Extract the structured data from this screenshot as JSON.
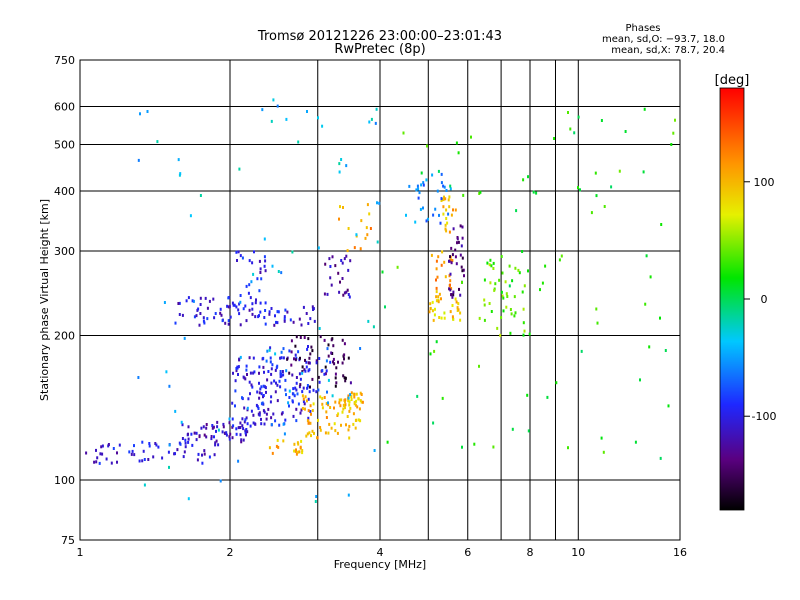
{
  "chart_data": {
    "type": "scatter",
    "title": "Tromsø 20121226 23:00:00–23:01:43",
    "subtitle": "RwPretec (8p)",
    "xlabel": "Frequency [MHz]",
    "ylabel": "Stationary phase Virtual Height [km]",
    "x_scale": "log",
    "y_scale": "log",
    "xlim": [
      1,
      16
    ],
    "ylim": [
      75,
      750
    ],
    "x_ticks": [
      1,
      2,
      4,
      6,
      8,
      10,
      16
    ],
    "x_tick_labels": [
      "1",
      "2",
      "4",
      "6",
      "8",
      "10",
      "16"
    ],
    "x_minor_gridlines": [
      3,
      5,
      7,
      9
    ],
    "y_ticks": [
      75,
      100,
      200,
      300,
      400,
      500,
      600,
      750
    ],
    "y_tick_labels": [
      "75",
      "100",
      "200",
      "300",
      "400",
      "500",
      "600",
      "750"
    ],
    "grid": true,
    "phases_box": {
      "title": "Phases",
      "line1": "mean, sd,O: −93.7, 18.0",
      "line2": "mean, sd,X:  78.7, 20.4"
    },
    "colorbar": {
      "label": "[deg]",
      "range": [
        -180,
        180
      ],
      "ticks": [
        100,
        0,
        -100
      ],
      "tick_labels": [
        "100",
        "0",
        "-100"
      ]
    },
    "clusters": [
      {
        "fmin": 1.0,
        "fmax": 1.9,
        "hmin": 108,
        "hmax": 120,
        "phase": -105,
        "count": 60
      },
      {
        "fmin": 1.6,
        "fmax": 2.2,
        "hmin": 120,
        "hmax": 132,
        "phase": -110,
        "count": 60
      },
      {
        "fmin": 2.0,
        "fmax": 2.9,
        "hmin": 130,
        "hmax": 180,
        "phase": -100,
        "count": 150
      },
      {
        "fmin": 2.4,
        "fmax": 2.8,
        "hmin": 113,
        "hmax": 123,
        "phase": 100,
        "count": 20
      },
      {
        "fmin": 2.8,
        "fmax": 3.7,
        "hmin": 122,
        "hmax": 150,
        "phase": 100,
        "count": 70
      },
      {
        "fmin": 3.3,
        "fmax": 3.7,
        "hmin": 140,
        "hmax": 152,
        "phase": 95,
        "count": 30
      },
      {
        "fmin": 2.6,
        "fmax": 3.5,
        "hmin": 155,
        "hmax": 200,
        "phase": -150,
        "count": 60
      },
      {
        "fmin": 2.3,
        "fmax": 3.2,
        "hmin": 150,
        "hmax": 190,
        "phase": -80,
        "count": 40
      },
      {
        "fmin": 1.55,
        "fmax": 2.4,
        "hmin": 210,
        "hmax": 240,
        "phase": -105,
        "count": 60
      },
      {
        "fmin": 2.05,
        "fmax": 2.4,
        "hmin": 220,
        "hmax": 300,
        "phase": -100,
        "count": 30
      },
      {
        "fmin": 2.4,
        "fmax": 3.0,
        "hmin": 210,
        "hmax": 230,
        "phase": -105,
        "count": 25
      },
      {
        "fmin": 3.1,
        "fmax": 3.5,
        "hmin": 240,
        "hmax": 300,
        "phase": -120,
        "count": 25
      },
      {
        "fmin": 5.0,
        "fmax": 5.8,
        "hmin": 215,
        "hmax": 250,
        "phase": 90,
        "count": 35
      },
      {
        "fmin": 5.0,
        "fmax": 5.6,
        "hmin": 250,
        "hmax": 300,
        "phase": 115,
        "count": 20
      },
      {
        "fmin": 5.5,
        "fmax": 5.9,
        "hmin": 240,
        "hmax": 340,
        "phase": -140,
        "count": 35
      },
      {
        "fmin": 5.3,
        "fmax": 5.7,
        "hmin": 320,
        "hmax": 390,
        "phase": 100,
        "count": 20
      },
      {
        "fmin": 4.4,
        "fmax": 5.6,
        "hmin": 340,
        "hmax": 440,
        "phase": -60,
        "count": 30
      },
      {
        "fmin": 6.3,
        "fmax": 8.5,
        "hmin": 200,
        "hmax": 290,
        "phase": 40,
        "count": 50
      },
      {
        "fmin": 3.3,
        "fmax": 3.9,
        "hmin": 300,
        "hmax": 380,
        "phase": 110,
        "count": 15
      },
      {
        "fmin": 1.3,
        "fmax": 4.0,
        "hmin": 90,
        "hmax": 620,
        "phase": -40,
        "count": 80
      },
      {
        "fmin": 4.0,
        "fmax": 16.0,
        "hmin": 110,
        "hmax": 600,
        "phase": 20,
        "count": 80
      }
    ]
  }
}
